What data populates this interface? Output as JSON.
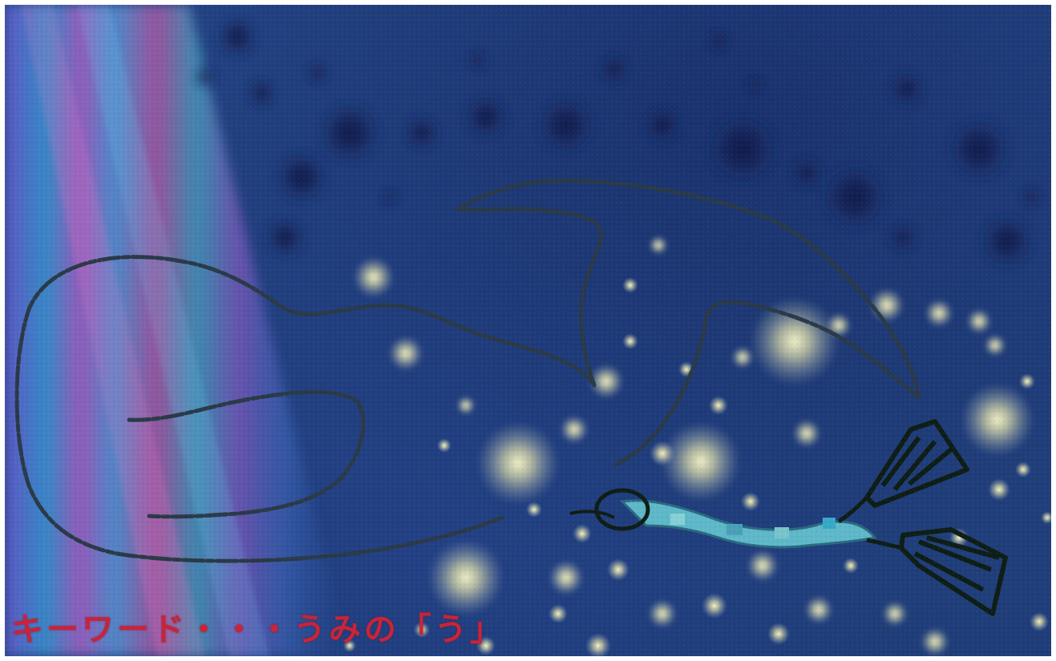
{
  "caption": "キーワード・・・うみの「う」",
  "colors": {
    "background": "#22417f",
    "caption": "#c8243a",
    "outline": "#1c2a3a",
    "glow": "#f2f0c0",
    "dark_spot": "#0d1a45",
    "diver_suit": "#5fb8c8",
    "fins": "#0e1e16"
  }
}
